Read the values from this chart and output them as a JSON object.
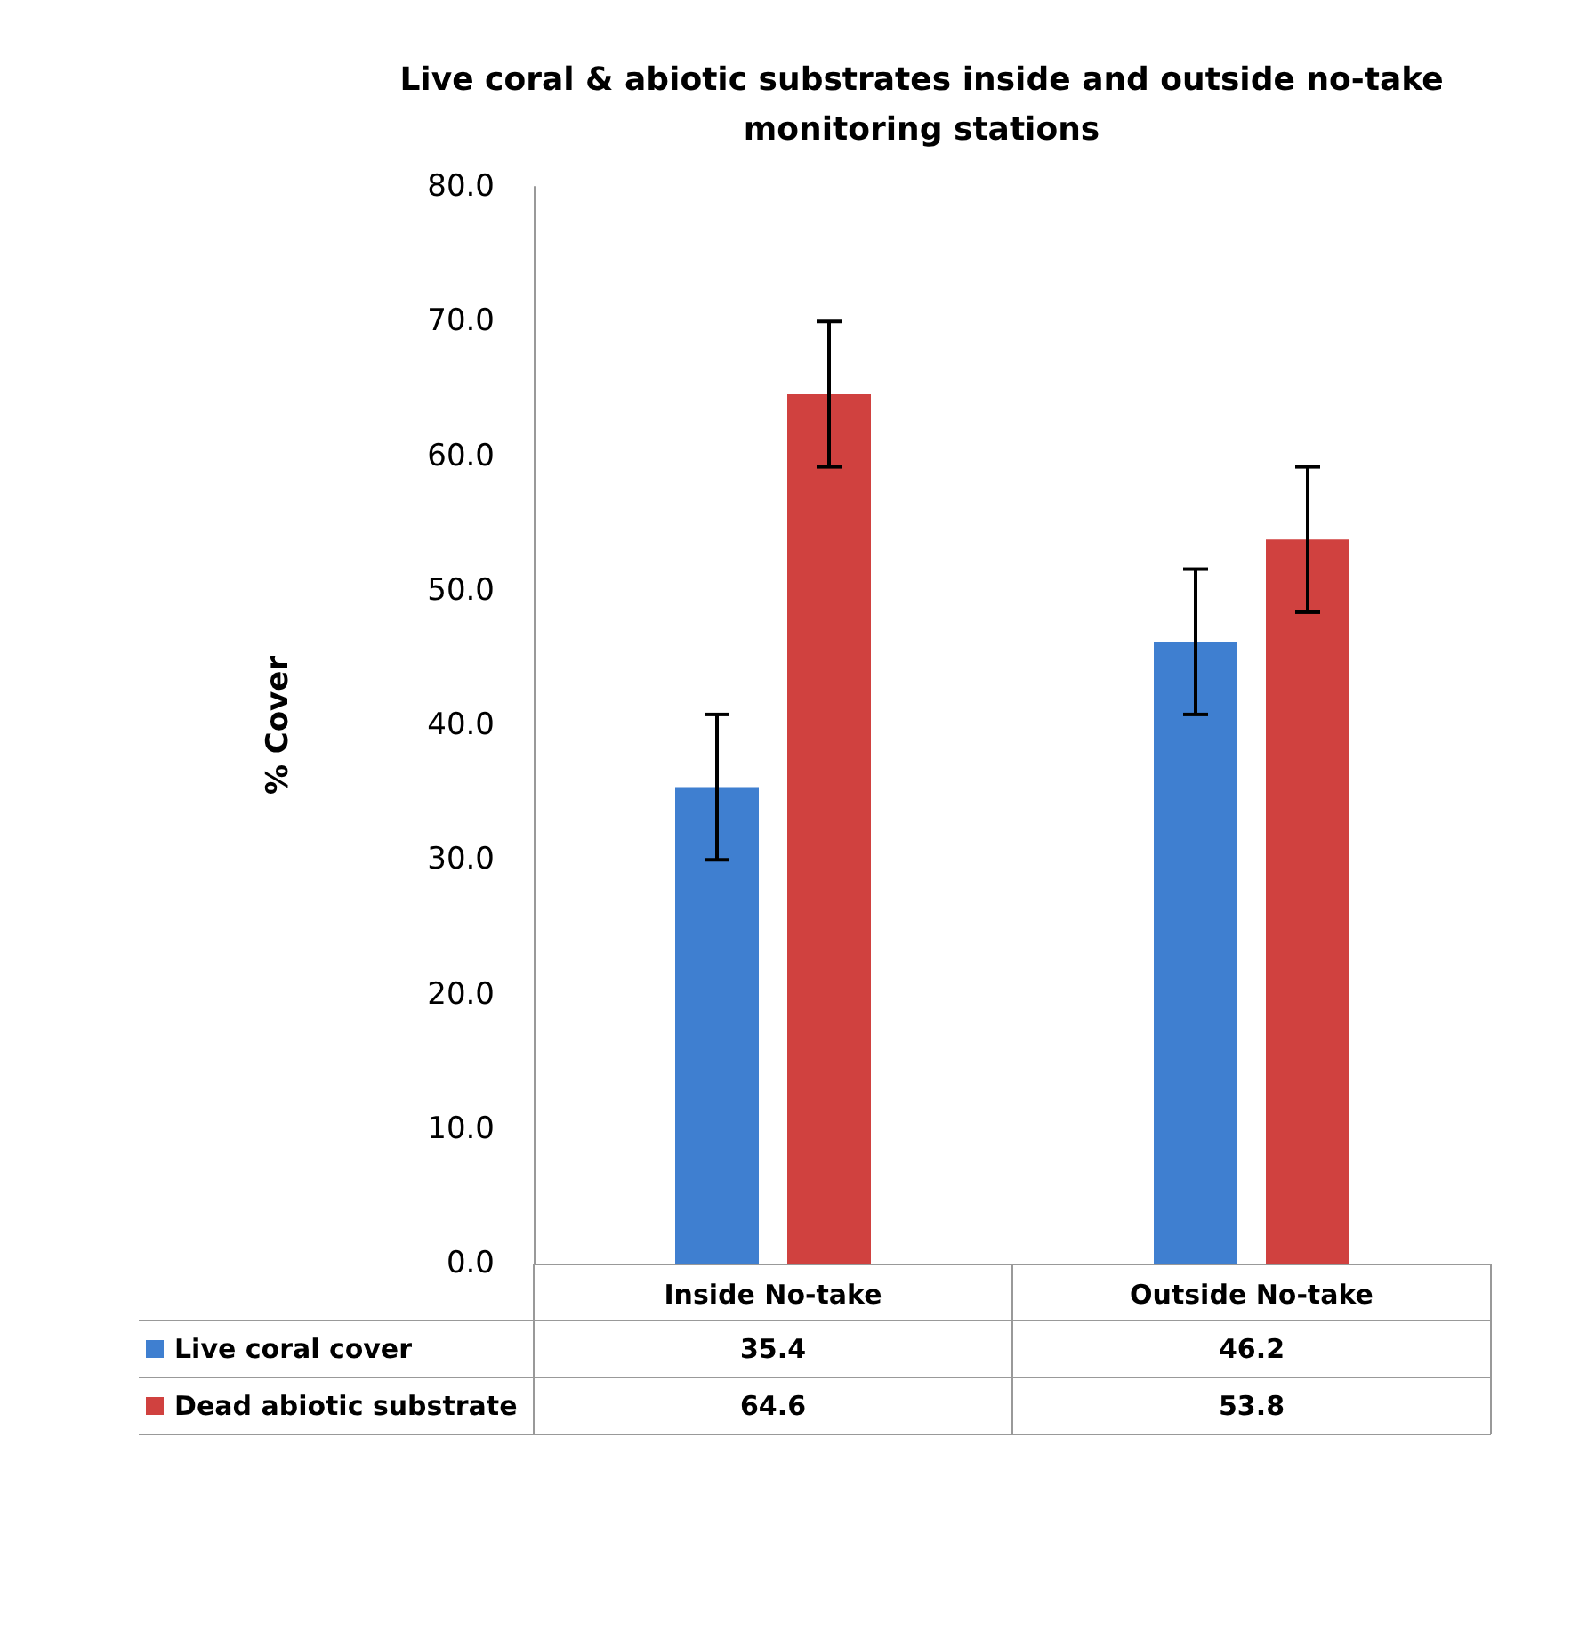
{
  "chart_data": {
    "type": "bar",
    "title": "Live coral & abiotic substrates inside and outside no-take\nmonitoring stations",
    "ylabel": "% Cover",
    "categories": [
      "Inside No-take",
      "Outside No-take"
    ],
    "series": [
      {
        "name": "Live coral cover",
        "color": "#3f7fd0",
        "values": [
          35.4,
          46.2
        ],
        "errors": [
          5.4,
          5.4
        ]
      },
      {
        "name": "Dead abiotic substrate",
        "color": "#d0413f",
        "values": [
          64.6,
          53.8
        ],
        "errors": [
          5.4,
          5.4
        ]
      }
    ],
    "ylim": [
      0,
      80
    ],
    "yticks": [
      {
        "value": 0,
        "label": "0.0"
      },
      {
        "value": 10,
        "label": "10.0"
      },
      {
        "value": 20,
        "label": "20.0"
      },
      {
        "value": 30,
        "label": "30.0"
      },
      {
        "value": 40,
        "label": "40.0"
      },
      {
        "value": 50,
        "label": "50.0"
      },
      {
        "value": 60,
        "label": "60.0"
      },
      {
        "value": 70,
        "label": "70.0"
      },
      {
        "value": 80,
        "label": "80.0"
      }
    ],
    "grid": false,
    "legend": "bottom",
    "data_labels": true
  }
}
